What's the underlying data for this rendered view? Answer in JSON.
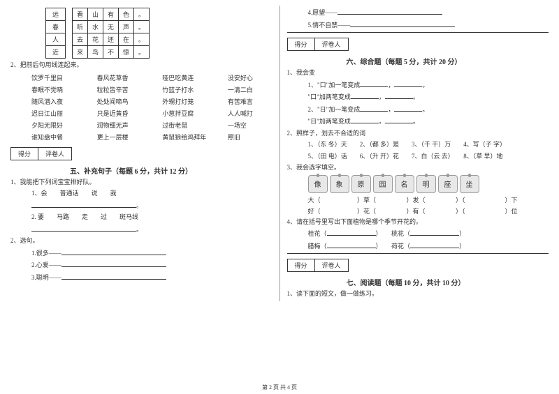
{
  "grid": {
    "rows": [
      {
        "lead": "远",
        "cells": [
          "看",
          "山",
          "有",
          "色",
          "。"
        ]
      },
      {
        "lead": "春",
        "cells": [
          "听",
          "水",
          "无",
          "声",
          "。"
        ]
      },
      {
        "lead": "人",
        "cells": [
          "去",
          "花",
          "还",
          "在",
          "。"
        ]
      },
      {
        "lead": "近",
        "cells": [
          "来",
          "鸟",
          "不",
          "惊",
          "。"
        ]
      }
    ]
  },
  "q2": {
    "title": "2、把前后句用线连起来。"
  },
  "match": [
    [
      "饮罗千里目",
      "春风花草香",
      "哑巴吃黄连",
      "没安好心"
    ],
    [
      "春眠不觉晓",
      "粒粒皆辛苦",
      "竹篮子打水",
      "一清二白"
    ],
    [
      "随风潜入夜",
      "处处闻啼鸟",
      "外甥打灯笼",
      "有苦难言"
    ],
    [
      "迟日江山丽",
      "只是近黄昏",
      "小葱拌豆腐",
      "人人喊打"
    ],
    [
      "夕阳无限好",
      "润物细无声",
      "过街老鼠",
      "一场空"
    ],
    [
      "谁知盘中餐",
      "更上一层楼",
      "黄鼠狼给鸡拜年",
      "照旧"
    ]
  ],
  "scorebox": {
    "a": "得分",
    "b": "评卷人"
  },
  "sect5": {
    "title": "五、补充句子（每题 6 分，共计 12 分）"
  },
  "s5q1": {
    "title": "1、我能把下列词宝宝排好队。",
    "a": "1、会　　普通话　　说　　我",
    "b": "2. 要　　马路　　走　　过　　斑马线"
  },
  "s5q2": {
    "title": "2、选句。",
    "items": [
      "1.很多——",
      "2.心爱——",
      "3.聪明——"
    ]
  },
  "right_top": {
    "items": [
      "4.愿望——",
      "5.情不自禁——"
    ]
  },
  "sect6": {
    "title": "六、综合题（每题 5 分，共计 20 分）"
  },
  "s6q1": {
    "title": "1、我会变",
    "items": [
      "1、\"口\"加一笔变成",
      "\"口\"加两笔变成",
      "2、\"日\"加一笔变成",
      "\"日\"加两笔变成"
    ]
  },
  "s6q2": {
    "title": "2、照样子，划去不合适的词",
    "items": [
      "1、（东 冬）天　　2、（都 多）是　　3、（千 干）万　　4、写（子 字）",
      "5、（田 电）话　　6、（升 开）花　　7、白（云 去）　　8、（草 早）地"
    ]
  },
  "s6q3": {
    "title": "3、我会选字填空。"
  },
  "apples": [
    "像",
    "象",
    "原",
    "园",
    "名",
    "明",
    "座",
    "坐"
  ],
  "fill1": [
    "大（",
    "）草（",
    "）发（",
    "）（",
    "）下"
  ],
  "fill2": [
    "好（",
    "）花（",
    "）有（",
    "）（",
    "）位"
  ],
  "s6q4": {
    "title": "4、请在括号里写出下面植物是哪个季节开花的。",
    "rows": [
      [
        "桂花（",
        "）",
        "桃花（",
        "）"
      ],
      [
        "腊梅（",
        "）",
        "荷花（",
        "）"
      ]
    ]
  },
  "sect7": {
    "title": "七、阅读题（每题 10 分，共计 10 分）"
  },
  "s7q1": {
    "title": "1、读下面的短文，做一做练习。"
  },
  "footer": "第 2 页 共 4 页"
}
